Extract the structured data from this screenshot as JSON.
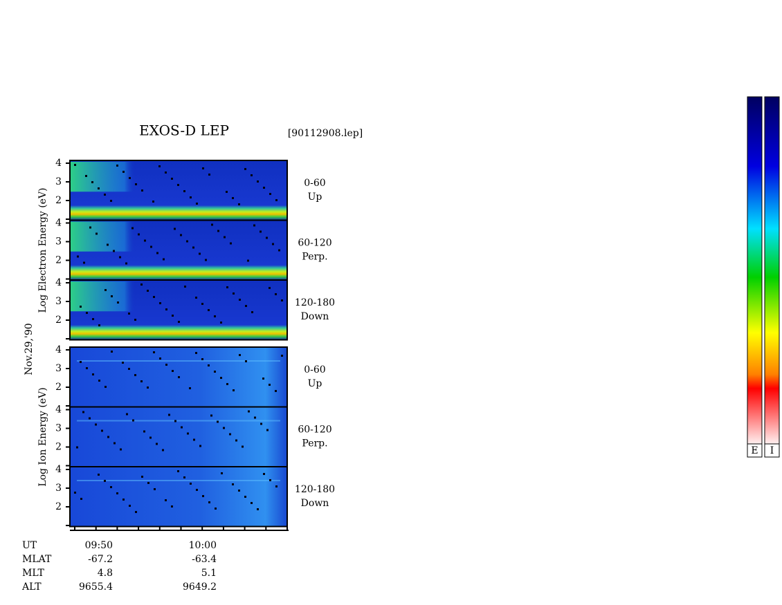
{
  "title": "EXOS-D LEP",
  "file": "[90112908.lep]",
  "date": "Nov.29,'90",
  "groups": [
    {
      "ylabel": "Log  Electron  Energy (eV)",
      "panels": [
        {
          "range": "0-60",
          "dir": "Up"
        },
        {
          "range": "60-120",
          "dir": "Perp."
        },
        {
          "range": "120-180",
          "dir": "Down"
        }
      ]
    },
    {
      "ylabel": "Log  Ion  Energy (eV)",
      "panels": [
        {
          "range": "0-60",
          "dir": "Up"
        },
        {
          "range": "60-120",
          "dir": "Perp."
        },
        {
          "range": "120-180",
          "dir": "Down"
        }
      ]
    }
  ],
  "yticks": [
    "4",
    "3",
    "2"
  ],
  "orbit": {
    "rows": [
      [
        "UT",
        "09:50",
        "10:00"
      ],
      [
        "MLAT",
        "-67.2",
        "-63.4"
      ],
      [
        "MLT",
        "4.8",
        "5.1"
      ],
      [
        "ALT",
        "9655.4",
        "9649.2"
      ]
    ]
  },
  "colorbars": [
    "E",
    "I"
  ]
}
